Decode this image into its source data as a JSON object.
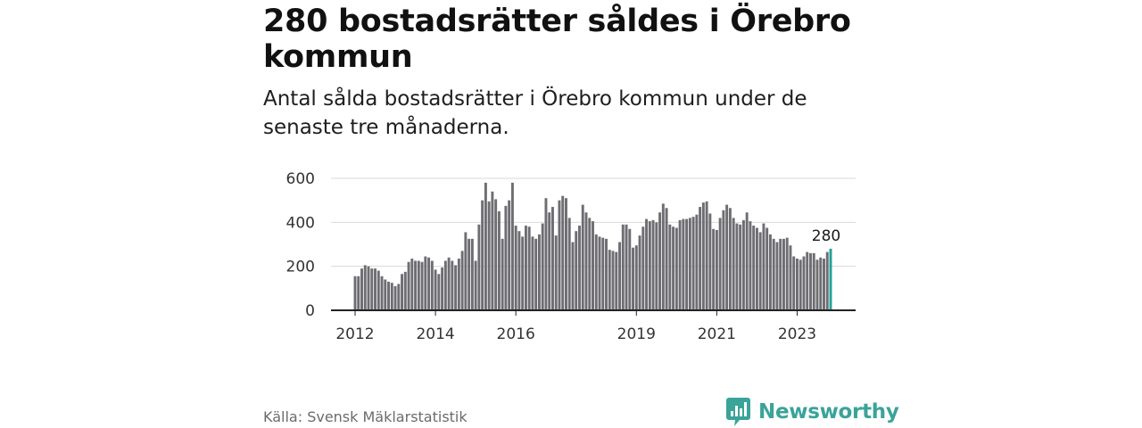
{
  "title": "280 bostadsrätter såldes i Örebro kommun",
  "subtitle": "Antal sålda bostadsrätter i Örebro kommun under de senaste tre månaderna.",
  "source": "Källa: Svensk Mäklarstatistik",
  "brand": {
    "name": "Newsworthy",
    "icon": "newsworthy-logo-icon",
    "color": "#3aa39a"
  },
  "colors": {
    "bar": "#6e6d72",
    "highlight": "#20a399",
    "grid": "#d9d9d9",
    "axis": "#222222"
  },
  "chart_data": {
    "type": "bar",
    "title": "",
    "xlabel": "",
    "ylabel": "",
    "ylim": [
      0,
      600
    ],
    "y_ticks": [
      0,
      200,
      400,
      600
    ],
    "x_tick_labels": [
      "2012",
      "2014",
      "2016",
      "2019",
      "2021",
      "2023"
    ],
    "x_start": "2012-01",
    "highlight_label": "280",
    "grid": true,
    "values": [
      155,
      155,
      190,
      205,
      200,
      190,
      190,
      180,
      155,
      140,
      130,
      125,
      110,
      120,
      165,
      175,
      220,
      235,
      225,
      225,
      220,
      245,
      240,
      225,
      185,
      165,
      195,
      225,
      240,
      225,
      205,
      235,
      270,
      355,
      325,
      325,
      225,
      390,
      500,
      580,
      495,
      540,
      505,
      450,
      325,
      475,
      500,
      580,
      385,
      360,
      335,
      385,
      380,
      335,
      325,
      345,
      395,
      510,
      445,
      470,
      340,
      500,
      520,
      510,
      420,
      310,
      360,
      385,
      480,
      445,
      420,
      405,
      345,
      335,
      330,
      325,
      275,
      270,
      265,
      310,
      390,
      390,
      370,
      285,
      295,
      340,
      380,
      415,
      405,
      410,
      400,
      445,
      485,
      465,
      390,
      380,
      375,
      410,
      415,
      415,
      420,
      425,
      435,
      470,
      490,
      495,
      440,
      370,
      365,
      420,
      455,
      480,
      465,
      420,
      395,
      390,
      410,
      445,
      405,
      385,
      375,
      355,
      395,
      375,
      345,
      325,
      310,
      325,
      325,
      330,
      295,
      245,
      235,
      230,
      245,
      265,
      260,
      260,
      230,
      240,
      235,
      265,
      280
    ]
  }
}
